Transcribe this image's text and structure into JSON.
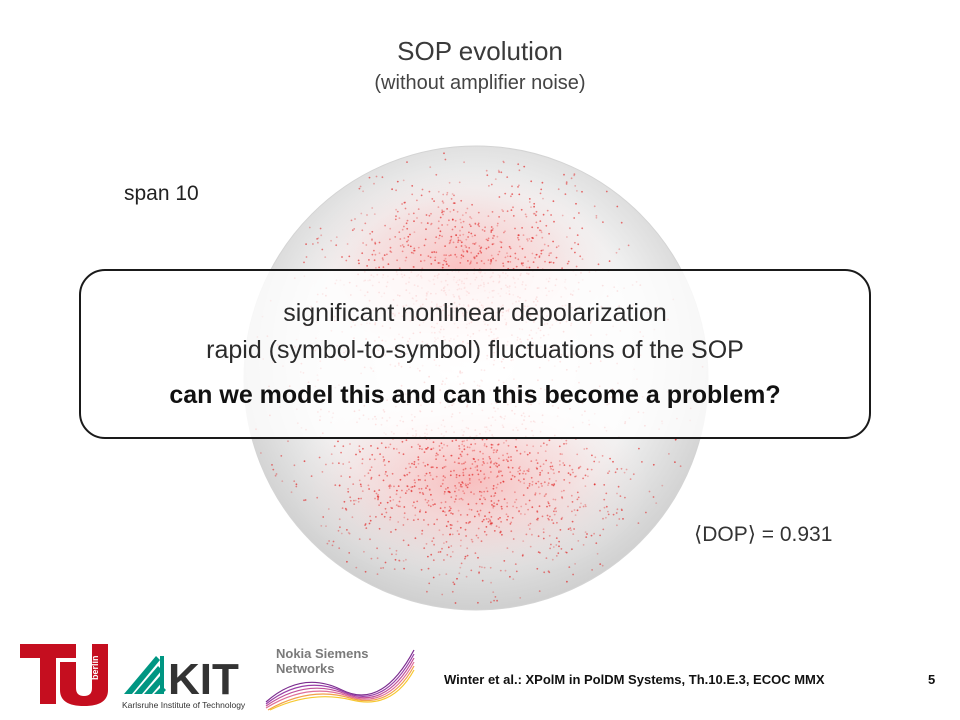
{
  "slide": {
    "title": "SOP evolution",
    "subtitle": "(without amplifier noise)",
    "span_label": "span 10",
    "dop_label": "⟨DOP⟩ = 0.931"
  },
  "callout": {
    "line1": "significant nonlinear depolarization",
    "line2": "rapid (symbol-to-symbol) fluctuations of the SOP",
    "line3": "can we model this and can this become a problem?"
  },
  "footer": {
    "citation": "Winter et al.: XPolM in PolDM Systems, Th.10.E.3, ECOC MMX",
    "page_number": "5",
    "tu_logo_text": "berlin",
    "kit_logo_text": "KIT",
    "kit_tagline": "Karlsruhe Institute of Technology",
    "nsn_line1": "Nokia Siemens",
    "nsn_line2": "Networks"
  },
  "colors": {
    "tu_red": "#c50e1f",
    "kit_green": "#009682",
    "point_red": "#e02020"
  }
}
